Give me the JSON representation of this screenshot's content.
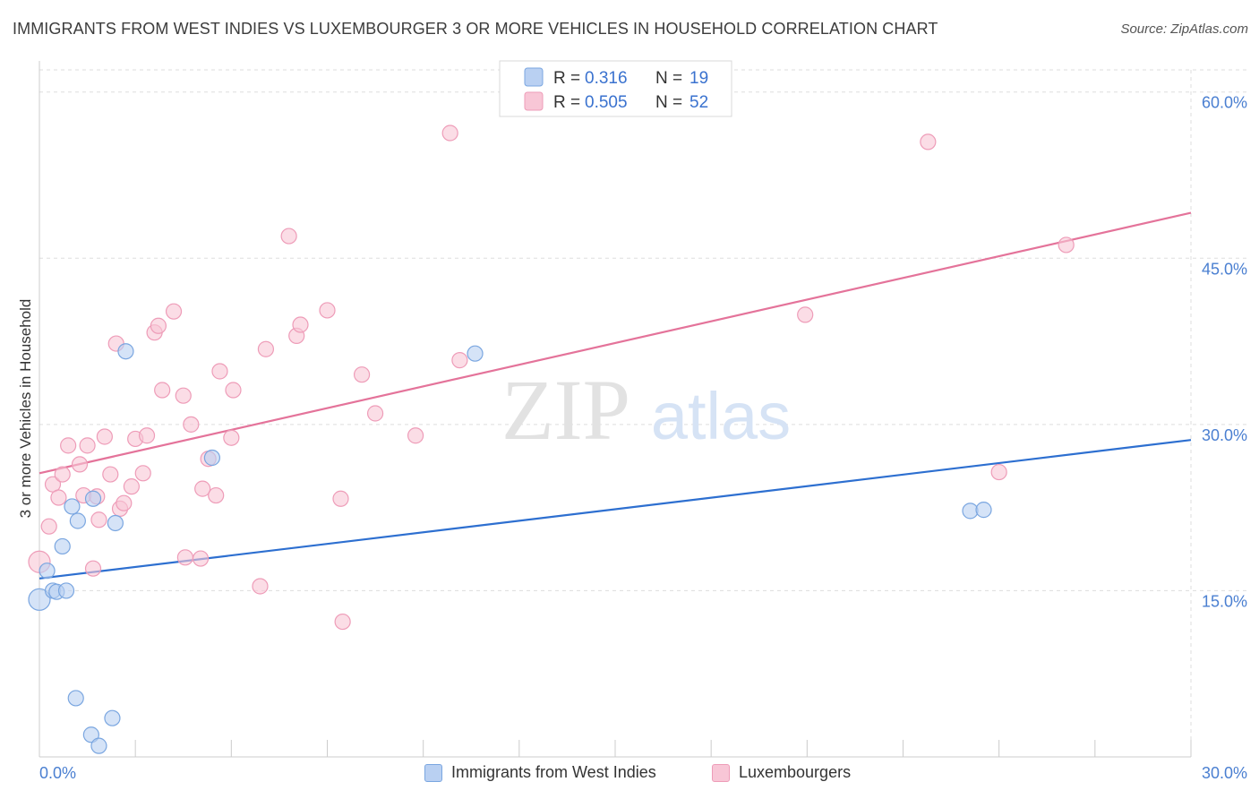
{
  "header": {
    "title": "IMMIGRANTS FROM WEST INDIES VS LUXEMBOURGER 3 OR MORE VEHICLES IN HOUSEHOLD CORRELATION CHART",
    "source": "Source: ZipAtlas.com"
  },
  "watermark": {
    "zip": "ZIP",
    "atlas": "atlas"
  },
  "legend": {
    "r_label": "R =",
    "n_label": "N =",
    "rows": [
      {
        "r": "0.316",
        "n": "19"
      },
      {
        "r": "0.505",
        "n": "52"
      }
    ]
  },
  "colors": {
    "blue_fill": "#b9d0f2",
    "blue_stroke": "#7aa6e0",
    "blue_line": "#2d6fd0",
    "pink_fill": "#f8c6d6",
    "pink_stroke": "#ee9cb8",
    "pink_line": "#e4739a",
    "tick_label": "#4a7fd1",
    "grid": "#dddddd"
  },
  "chart_data": {
    "type": "scatter",
    "title": "IMMIGRANTS FROM WEST INDIES VS LUXEMBOURGER 3 OR MORE VEHICLES IN HOUSEHOLD CORRELATION CHART",
    "xlabel": "",
    "ylabel": "3 or more Vehicles in Household",
    "xlim": [
      0,
      30
    ],
    "ylim": [
      0,
      62
    ],
    "x_tick_labels": [
      "0.0%",
      "30.0%"
    ],
    "y_ticks": [
      15,
      30,
      45,
      60
    ],
    "y_tick_labels": [
      "15.0%",
      "30.0%",
      "45.0%",
      "60.0%"
    ],
    "grid": true,
    "legend_position": "top-center",
    "series": [
      {
        "name": "Immigrants from West Indies",
        "color": "#b9d0f2",
        "points": [
          [
            0.0,
            14.2
          ],
          [
            0.2,
            16.8
          ],
          [
            0.35,
            15.0
          ],
          [
            0.45,
            14.9
          ],
          [
            0.6,
            19.0
          ],
          [
            0.7,
            15.0
          ],
          [
            0.85,
            22.6
          ],
          [
            1.0,
            21.3
          ],
          [
            0.95,
            5.3
          ],
          [
            1.4,
            23.3
          ],
          [
            1.35,
            2.0
          ],
          [
            1.55,
            1.0
          ],
          [
            1.9,
            3.5
          ],
          [
            1.98,
            21.1
          ],
          [
            2.25,
            36.6
          ],
          [
            4.5,
            27.0
          ],
          [
            11.35,
            36.4
          ],
          [
            24.25,
            22.2
          ],
          [
            24.6,
            22.3
          ]
        ],
        "trendline": {
          "x": [
            0,
            30
          ],
          "y": [
            16.1,
            28.6
          ]
        }
      },
      {
        "name": "Luxembourgers",
        "color": "#f8c6d6",
        "points": [
          [
            0.0,
            17.6
          ],
          [
            0.25,
            20.8
          ],
          [
            0.35,
            24.6
          ],
          [
            0.5,
            23.4
          ],
          [
            0.6,
            25.5
          ],
          [
            0.75,
            28.1
          ],
          [
            1.05,
            26.4
          ],
          [
            1.15,
            23.6
          ],
          [
            1.25,
            28.1
          ],
          [
            1.4,
            17.0
          ],
          [
            1.5,
            23.5
          ],
          [
            1.55,
            21.4
          ],
          [
            1.7,
            28.9
          ],
          [
            1.85,
            25.5
          ],
          [
            2.0,
            37.3
          ],
          [
            2.1,
            22.4
          ],
          [
            2.2,
            22.9
          ],
          [
            2.4,
            24.4
          ],
          [
            2.5,
            28.7
          ],
          [
            2.7,
            25.6
          ],
          [
            2.8,
            29.0
          ],
          [
            3.0,
            38.3
          ],
          [
            3.1,
            38.9
          ],
          [
            3.2,
            33.1
          ],
          [
            3.5,
            40.2
          ],
          [
            3.75,
            32.6
          ],
          [
            3.8,
            18.0
          ],
          [
            3.95,
            30.0
          ],
          [
            4.2,
            17.9
          ],
          [
            4.25,
            24.2
          ],
          [
            4.4,
            26.9
          ],
          [
            4.6,
            23.6
          ],
          [
            4.7,
            34.8
          ],
          [
            5.0,
            28.8
          ],
          [
            5.05,
            33.1
          ],
          [
            5.75,
            15.4
          ],
          [
            5.9,
            36.8
          ],
          [
            6.5,
            47.0
          ],
          [
            6.7,
            38.0
          ],
          [
            6.8,
            39.0
          ],
          [
            7.5,
            40.3
          ],
          [
            7.85,
            23.3
          ],
          [
            7.9,
            12.2
          ],
          [
            8.4,
            34.5
          ],
          [
            8.75,
            31.0
          ],
          [
            9.8,
            29.0
          ],
          [
            10.7,
            56.3
          ],
          [
            10.95,
            35.8
          ],
          [
            19.95,
            39.9
          ],
          [
            23.15,
            55.5
          ],
          [
            25.0,
            25.7
          ],
          [
            26.75,
            46.2
          ]
        ],
        "trendline": {
          "x": [
            0,
            30
          ],
          "y": [
            25.6,
            49.1
          ]
        }
      }
    ]
  },
  "bottom_legend": {
    "items": [
      {
        "label": "Immigrants from West Indies"
      },
      {
        "label": "Luxembourgers"
      }
    ]
  }
}
